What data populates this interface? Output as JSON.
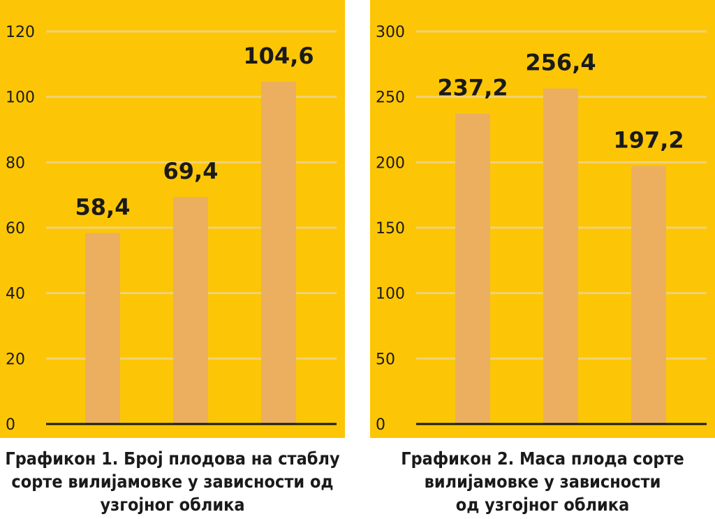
{
  "chart_data": [
    {
      "type": "bar",
      "categories": [
        "",
        "",
        ""
      ],
      "values": [
        58.4,
        69.4,
        104.6
      ],
      "value_labels": [
        "58,4",
        "69,4",
        "104,6"
      ],
      "ylim": [
        0,
        120
      ],
      "yticks": [
        0,
        20,
        40,
        60,
        80,
        100,
        120
      ],
      "grid": true,
      "title": "",
      "xlabel": "",
      "ylabel": "",
      "caption_lines": [
        "Графикон 1. Број плодова на стаблу",
        "сорте вилијамовке у зависности од",
        "узгојног облика"
      ]
    },
    {
      "type": "bar",
      "categories": [
        "",
        "",
        ""
      ],
      "values": [
        237.2,
        256.4,
        197.2
      ],
      "value_labels": [
        "237,2",
        "256,4",
        "197,2"
      ],
      "ylim": [
        0,
        300
      ],
      "yticks": [
        0,
        50,
        100,
        150,
        200,
        250,
        300
      ],
      "grid": true,
      "title": "",
      "xlabel": "",
      "ylabel": "",
      "caption_lines": [
        "Графикон 2. Маса плода сорте",
        "вилијамовке у зависности",
        "од узгојног облика"
      ]
    }
  ],
  "colors": {
    "background": "#fcc606",
    "bar": "#ebaf5f",
    "gridline": "#f0d27a",
    "axis": "#1a1a1a",
    "text": "#1a1a1a"
  }
}
